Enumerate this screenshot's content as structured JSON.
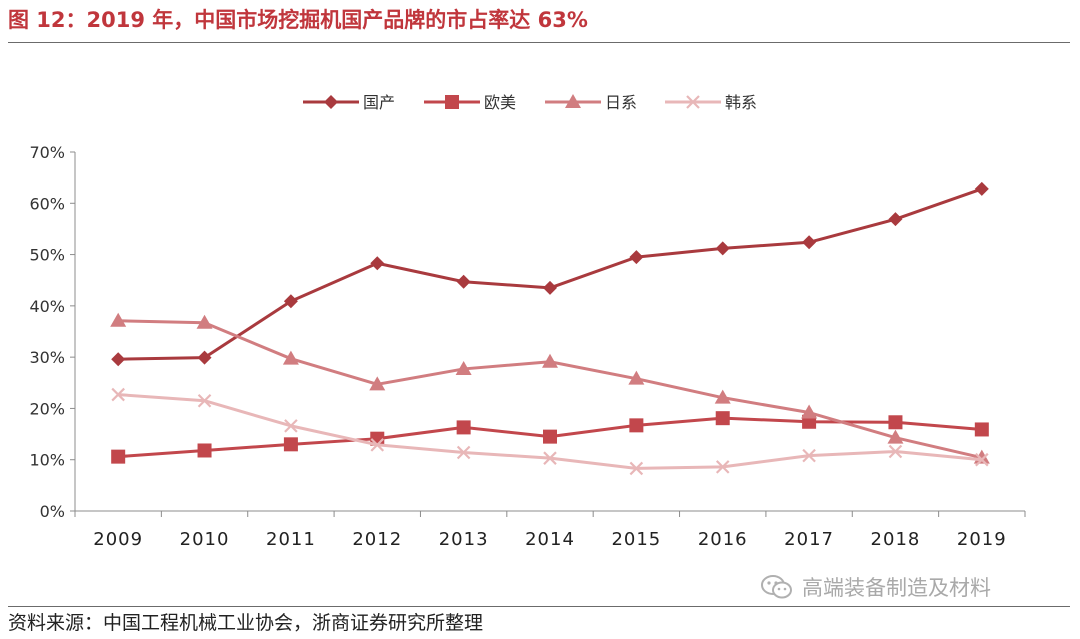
{
  "header": {
    "title": "图 12：2019 年，中国市场挖掘机国产品牌的市占率达 63%"
  },
  "footer": {
    "source": "资料来源：中国工程机械工业协会，浙商证券研究所整理",
    "watermark": "高端装备制造及材料"
  },
  "chart_data": {
    "type": "line",
    "title": "",
    "xlabel": "",
    "ylabel": "",
    "categories": [
      "2009",
      "2010",
      "2011",
      "2012",
      "2013",
      "2014",
      "2015",
      "2016",
      "2017",
      "2018",
      "2019"
    ],
    "ylim": [
      0,
      70
    ],
    "yticks": [
      0,
      10,
      20,
      30,
      40,
      50,
      60,
      70
    ],
    "ytick_labels": [
      "0%",
      "10%",
      "20%",
      "30%",
      "40%",
      "50%",
      "60%",
      "70%"
    ],
    "legend_position": "top-center",
    "grid": false,
    "series": [
      {
        "name": "国产",
        "marker": "diamond",
        "color": "#a93a3e",
        "values": [
          29.6,
          29.9,
          40.9,
          48.3,
          44.7,
          43.5,
          49.5,
          51.2,
          52.4,
          56.9,
          62.8
        ]
      },
      {
        "name": "欧美",
        "marker": "square",
        "color": "#c2474c",
        "values": [
          10.6,
          11.8,
          13.0,
          14.1,
          16.3,
          14.5,
          16.7,
          18.1,
          17.4,
          17.3,
          15.9
        ]
      },
      {
        "name": "日系",
        "marker": "triangle",
        "color": "#d17d80",
        "values": [
          37.1,
          36.7,
          29.7,
          24.7,
          27.7,
          29.1,
          25.8,
          22.1,
          19.2,
          14.3,
          10.4
        ]
      },
      {
        "name": "韩系",
        "marker": "x",
        "color": "#e8b7b8",
        "values": [
          22.7,
          21.5,
          16.6,
          12.9,
          11.4,
          10.3,
          8.3,
          8.6,
          10.8,
          11.6,
          10.0
        ]
      }
    ]
  }
}
